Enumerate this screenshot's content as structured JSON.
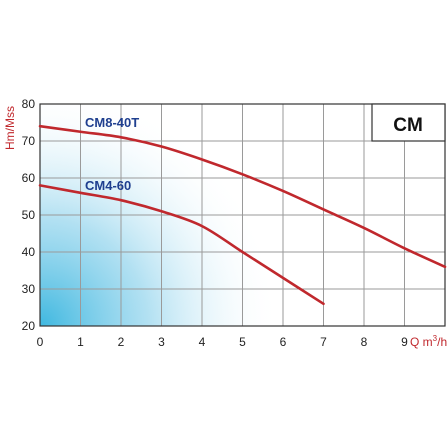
{
  "chart_data": {
    "type": "line",
    "model": "CM",
    "xlabel_main": "Q m",
    "xlabel_sup": "3",
    "xlabel_tail": "/h",
    "ylabel": "Hm/Mss",
    "xlim": [
      0,
      10
    ],
    "ylim": [
      20,
      80
    ],
    "xticks": [
      "0",
      "1",
      "2",
      "3",
      "4",
      "5",
      "6",
      "7",
      "8",
      "9"
    ],
    "yticks": [
      "20",
      "30",
      "40",
      "50",
      "60",
      "70",
      "80"
    ],
    "grid": true,
    "series": [
      {
        "name": "CM8-40T",
        "x": [
          0,
          1,
          2,
          3,
          4,
          5,
          6,
          7,
          8,
          9,
          10
        ],
        "y": [
          74,
          72.5,
          71,
          68.5,
          65,
          61,
          56.5,
          51.5,
          46.5,
          41,
          36
        ]
      },
      {
        "name": "CM4-60",
        "x": [
          0,
          1,
          2,
          3,
          4,
          5,
          6,
          7
        ],
        "y": [
          58,
          56,
          54,
          51,
          47,
          40,
          33,
          26
        ]
      }
    ],
    "colors": {
      "curve": "#c0282d",
      "label": "#1f3f8f",
      "grid": "#9a9a9a",
      "fill": "#3fb8e0"
    }
  }
}
